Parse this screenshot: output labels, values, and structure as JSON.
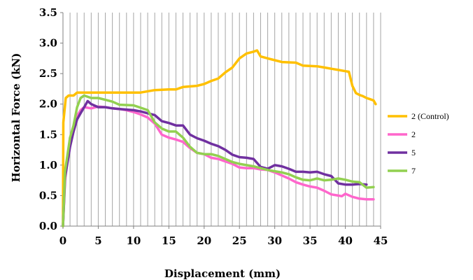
{
  "chart_data": {
    "type": "line",
    "title": "",
    "xlabel": "Displacement (mm)",
    "ylabel": "Horizontal Force (kN)",
    "xlim": [
      0,
      45
    ],
    "ylim": [
      0,
      3.5
    ],
    "xticks": [
      0,
      5,
      10,
      15,
      20,
      25,
      30,
      35,
      40,
      45
    ],
    "yticks": [
      "0.0",
      "0.5",
      "1.0",
      "1.5",
      "2.0",
      "2.5",
      "3.0",
      "3.5"
    ],
    "grid": "vertical lines every 1 mm",
    "legend_position": "right",
    "series": [
      {
        "name": "2 (Control)",
        "color": "#FFC000",
        "points": [
          [
            0,
            0
          ],
          [
            0.05,
            1.7
          ],
          [
            0.4,
            2.1
          ],
          [
            0.8,
            2.14
          ],
          [
            1.5,
            2.14
          ],
          [
            2.0,
            2.19
          ],
          [
            4,
            2.19
          ],
          [
            8,
            2.19
          ],
          [
            11,
            2.19
          ],
          [
            13,
            2.23
          ],
          [
            15,
            2.24
          ],
          [
            16,
            2.24
          ],
          [
            17,
            2.28
          ],
          [
            19,
            2.3
          ],
          [
            20,
            2.33
          ],
          [
            21,
            2.38
          ],
          [
            22,
            2.42
          ],
          [
            23,
            2.52
          ],
          [
            24,
            2.6
          ],
          [
            25,
            2.75
          ],
          [
            26,
            2.83
          ],
          [
            27,
            2.86
          ],
          [
            27.5,
            2.88
          ],
          [
            28,
            2.78
          ],
          [
            29,
            2.75
          ],
          [
            30,
            2.72
          ],
          [
            31,
            2.69
          ],
          [
            33,
            2.68
          ],
          [
            34,
            2.63
          ],
          [
            36,
            2.62
          ],
          [
            37,
            2.6
          ],
          [
            38,
            2.58
          ],
          [
            39,
            2.56
          ],
          [
            40,
            2.54
          ],
          [
            40.5,
            2.53
          ],
          [
            41,
            2.3
          ],
          [
            41.5,
            2.18
          ],
          [
            42,
            2.15
          ],
          [
            42.5,
            2.13
          ],
          [
            43,
            2.1
          ],
          [
            43.5,
            2.08
          ],
          [
            44,
            2.06
          ],
          [
            44.3,
            2.0
          ]
        ]
      },
      {
        "name": "2",
        "color": "#FF66CC",
        "points": [
          [
            0,
            0
          ],
          [
            0.3,
            0.75
          ],
          [
            1,
            1.45
          ],
          [
            1.5,
            1.55
          ],
          [
            2,
            1.8
          ],
          [
            2.5,
            1.9
          ],
          [
            3,
            1.95
          ],
          [
            4,
            1.93
          ],
          [
            5,
            1.96
          ],
          [
            6,
            1.95
          ],
          [
            7,
            1.93
          ],
          [
            8,
            1.92
          ],
          [
            9,
            1.9
          ],
          [
            10,
            1.87
          ],
          [
            11,
            1.83
          ],
          [
            12,
            1.78
          ],
          [
            13,
            1.68
          ],
          [
            14,
            1.5
          ],
          [
            15,
            1.45
          ],
          [
            16,
            1.42
          ],
          [
            17,
            1.38
          ],
          [
            18,
            1.28
          ],
          [
            19,
            1.2
          ],
          [
            20,
            1.18
          ],
          [
            21,
            1.12
          ],
          [
            22,
            1.1
          ],
          [
            23,
            1.06
          ],
          [
            24,
            1.02
          ],
          [
            25,
            0.96
          ],
          [
            26,
            0.95
          ],
          [
            27,
            0.95
          ],
          [
            28,
            0.93
          ],
          [
            29,
            0.92
          ],
          [
            30,
            0.88
          ],
          [
            31,
            0.83
          ],
          [
            32,
            0.78
          ],
          [
            33,
            0.72
          ],
          [
            34,
            0.68
          ],
          [
            35,
            0.65
          ],
          [
            36,
            0.63
          ],
          [
            37,
            0.58
          ],
          [
            38,
            0.52
          ],
          [
            39,
            0.5
          ],
          [
            39.5,
            0.49
          ],
          [
            40,
            0.53
          ],
          [
            41,
            0.48
          ],
          [
            42,
            0.45
          ],
          [
            43,
            0.44
          ],
          [
            44,
            0.44
          ]
        ]
      },
      {
        "name": "5",
        "color": "#7030A0",
        "points": [
          [
            0,
            0
          ],
          [
            0.3,
            0.8
          ],
          [
            1,
            1.3
          ],
          [
            1.5,
            1.55
          ],
          [
            2,
            1.75
          ],
          [
            2.5,
            1.85
          ],
          [
            3,
            1.95
          ],
          [
            3.5,
            2.05
          ],
          [
            4,
            2.0
          ],
          [
            5,
            1.95
          ],
          [
            6,
            1.95
          ],
          [
            7,
            1.93
          ],
          [
            8,
            1.92
          ],
          [
            10,
            1.9
          ],
          [
            11,
            1.88
          ],
          [
            12,
            1.85
          ],
          [
            13,
            1.82
          ],
          [
            14,
            1.72
          ],
          [
            15,
            1.69
          ],
          [
            16,
            1.65
          ],
          [
            17,
            1.65
          ],
          [
            18,
            1.5
          ],
          [
            19,
            1.44
          ],
          [
            20,
            1.4
          ],
          [
            21,
            1.35
          ],
          [
            22,
            1.31
          ],
          [
            23,
            1.25
          ],
          [
            24,
            1.17
          ],
          [
            25,
            1.13
          ],
          [
            26,
            1.12
          ],
          [
            27,
            1.1
          ],
          [
            28,
            0.97
          ],
          [
            29,
            0.94
          ],
          [
            30,
            1.0
          ],
          [
            31,
            0.98
          ],
          [
            32,
            0.94
          ],
          [
            33,
            0.89
          ],
          [
            34,
            0.89
          ],
          [
            35,
            0.88
          ],
          [
            36,
            0.89
          ],
          [
            37,
            0.85
          ],
          [
            38,
            0.82
          ],
          [
            39,
            0.7
          ],
          [
            40,
            0.68
          ],
          [
            41,
            0.68
          ],
          [
            42,
            0.69
          ],
          [
            43,
            0.68
          ]
        ]
      },
      {
        "name": "7",
        "color": "#92D050",
        "points": [
          [
            0,
            0
          ],
          [
            0.3,
            0.9
          ],
          [
            1,
            1.45
          ],
          [
            1.5,
            1.65
          ],
          [
            2,
            1.95
          ],
          [
            2.5,
            2.1
          ],
          [
            3,
            2.14
          ],
          [
            4,
            2.1
          ],
          [
            5,
            2.1
          ],
          [
            6,
            2.07
          ],
          [
            7,
            2.04
          ],
          [
            8,
            1.99
          ],
          [
            10,
            1.98
          ],
          [
            11,
            1.94
          ],
          [
            12,
            1.9
          ],
          [
            13,
            1.7
          ],
          [
            14,
            1.6
          ],
          [
            15,
            1.55
          ],
          [
            16,
            1.55
          ],
          [
            17,
            1.45
          ],
          [
            18,
            1.3
          ],
          [
            19,
            1.2
          ],
          [
            20,
            1.18
          ],
          [
            21,
            1.18
          ],
          [
            22,
            1.15
          ],
          [
            23,
            1.1
          ],
          [
            24,
            1.05
          ],
          [
            25,
            1.02
          ],
          [
            26,
            1.0
          ],
          [
            27,
            0.98
          ],
          [
            28,
            0.95
          ],
          [
            29,
            0.92
          ],
          [
            30,
            0.9
          ],
          [
            31,
            0.88
          ],
          [
            32,
            0.85
          ],
          [
            33,
            0.8
          ],
          [
            34,
            0.76
          ],
          [
            35,
            0.75
          ],
          [
            36,
            0.78
          ],
          [
            37,
            0.75
          ],
          [
            38,
            0.76
          ],
          [
            39,
            0.78
          ],
          [
            40,
            0.76
          ],
          [
            41,
            0.73
          ],
          [
            42,
            0.72
          ],
          [
            43,
            0.63
          ],
          [
            44,
            0.64
          ]
        ]
      }
    ]
  }
}
